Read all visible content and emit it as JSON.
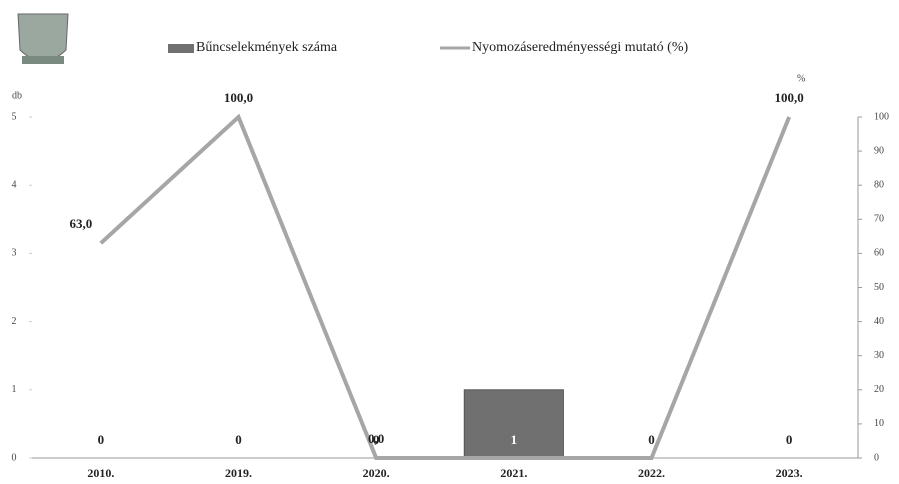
{
  "chart_data": {
    "type": "combo",
    "ylabel": "db",
    "y2label": "%",
    "categories": [
      "2010.",
      "2019.",
      "2020.",
      "2021.",
      "2022.",
      "2023."
    ],
    "series": [
      {
        "name": "Bűncselekmények száma",
        "type": "bar",
        "color": "#707070",
        "values": [
          0,
          0,
          0,
          1,
          0,
          0
        ]
      },
      {
        "name": "Nyomozáseredményességi mutató (%)",
        "type": "line",
        "axis": "y2",
        "color": "#a6a6a6",
        "values": [
          63,
          100,
          0,
          0,
          0,
          100
        ],
        "value_labels": [
          "63,0",
          "100,0",
          "0,0",
          null,
          null,
          "100,0"
        ]
      }
    ],
    "ylim": [
      0,
      5
    ],
    "yticks": [
      0,
      1,
      2,
      3,
      4,
      5
    ],
    "y2lim": [
      0,
      100
    ],
    "y2ticks": [
      0,
      10,
      20,
      30,
      40,
      50,
      60,
      70,
      80,
      90,
      100
    ]
  }
}
